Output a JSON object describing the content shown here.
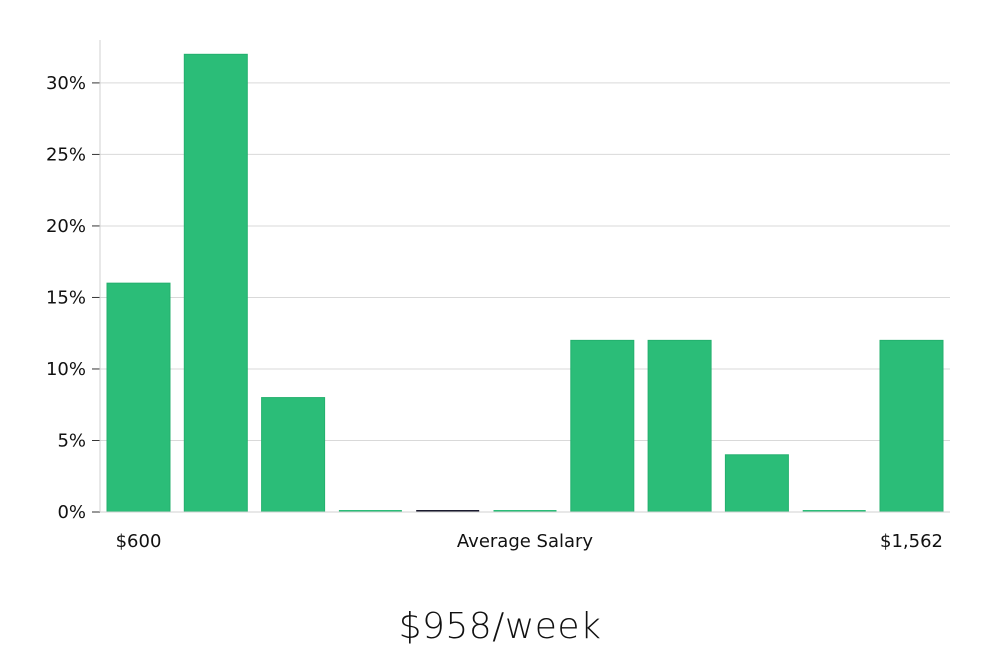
{
  "chart_data": {
    "type": "bar",
    "xlabel": "Average Salary",
    "x_min_label": "$600",
    "x_max_label": "$1,562",
    "y_tick_labels": [
      "0%",
      "5%",
      "10%",
      "15%",
      "20%",
      "25%",
      "30%"
    ],
    "y_ticks": [
      0,
      5,
      10,
      15,
      20,
      25,
      30
    ],
    "ylim": [
      0,
      33
    ],
    "values": [
      16,
      32,
      8,
      0,
      0,
      0,
      12,
      12,
      4,
      0,
      12
    ],
    "grid": true,
    "colors": {
      "bar": "#2bbd78",
      "bar_edge": "#24b06e",
      "zero_bar": "#2bbd78",
      "zero_bar_highlight": "#1a1a2e",
      "grid": "#d9d9d9",
      "axis": "#d0d0d0"
    },
    "highlight_index": 4
  },
  "summary": {
    "salary_text": "$958/week"
  }
}
